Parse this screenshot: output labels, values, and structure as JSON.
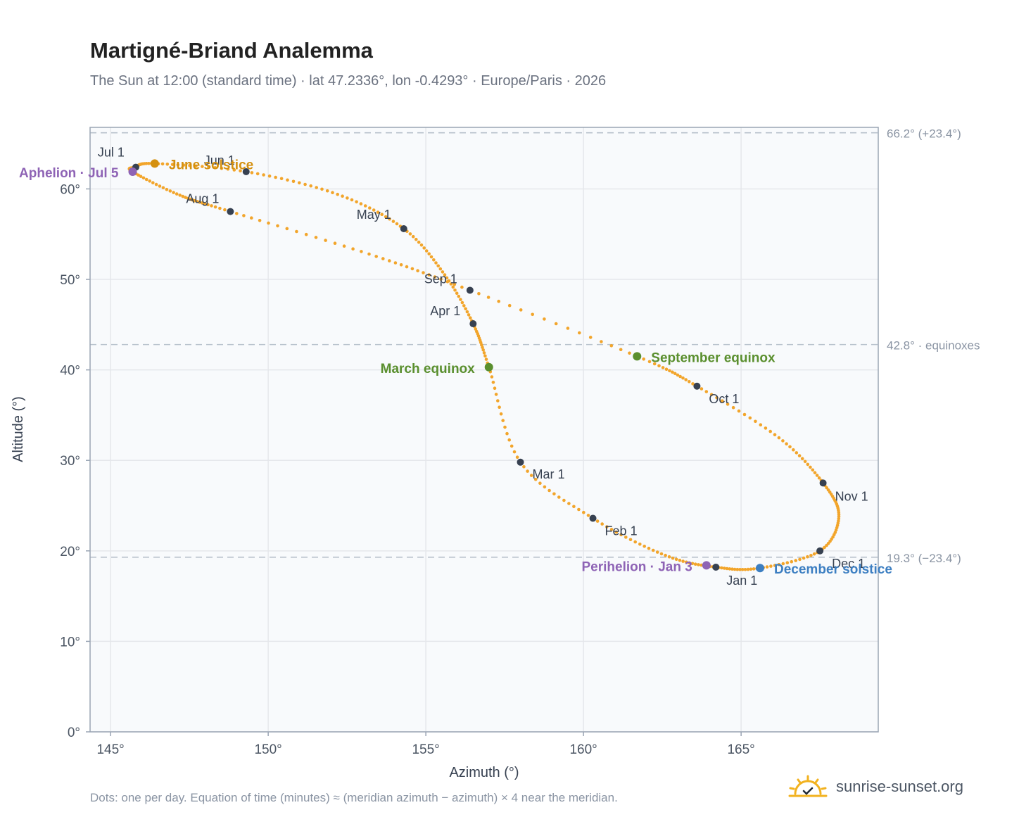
{
  "header": {
    "title": "Martigné-Briand Analemma",
    "subtitle": "The Sun at 12:00 (standard time) · lat 47.2336°, lon -0.4293° · Europe/Paris · 2026"
  },
  "footer": {
    "note": "Dots: one per day. Equation of time (minutes) ≈ (meridian azimuth − azimuth) × 4 near the meridian.",
    "brand": "sunrise-sunset.org"
  },
  "colors": {
    "curve": "#f2a52b",
    "month_marker": "#374151",
    "june_solstice": "#d4900f",
    "december_solstice": "#3d7fc2",
    "equinox": "#5a8f2e",
    "apsis": "#8e63b5",
    "plot_bg": "#f8fafc",
    "grid": "#e5e7eb",
    "reference_line": "#b8c2cc"
  },
  "chart_data": {
    "type": "scatter",
    "xlabel": "Azimuth (°)",
    "ylabel": "Altitude (°)",
    "xlim": [
      144.35,
      169.35
    ],
    "ylim": [
      0,
      66.8
    ],
    "x_ticks": [
      145,
      150,
      155,
      160,
      165
    ],
    "y_ticks": [
      0,
      10,
      20,
      30,
      40,
      50,
      60
    ],
    "x_tick_labels": [
      "145°",
      "150°",
      "155°",
      "160°",
      "165°"
    ],
    "y_tick_labels": [
      "0°",
      "10°",
      "20°",
      "30°",
      "40°",
      "50°",
      "60°"
    ],
    "grid": true,
    "reference_lines": [
      {
        "altitude": 66.2,
        "label": "66.2° (+23.4°)"
      },
      {
        "altitude": 42.8,
        "label": "42.8° · equinoxes"
      },
      {
        "altitude": 19.3,
        "label": "19.3° (−23.4°)"
      }
    ],
    "daily_path": [
      [
        164.2,
        18.2
      ],
      [
        162.6,
        19.5
      ],
      [
        160.3,
        23.6
      ],
      [
        158.0,
        29.8
      ],
      [
        157.0,
        40.3
      ],
      [
        156.5,
        45.1
      ],
      [
        155.6,
        50.5
      ],
      [
        154.3,
        55.6
      ],
      [
        152.2,
        59.4
      ],
      [
        149.3,
        61.9
      ],
      [
        146.4,
        62.8
      ],
      [
        145.8,
        62.4
      ],
      [
        145.7,
        61.9
      ],
      [
        147.2,
        59.3
      ],
      [
        148.8,
        57.5
      ],
      [
        153.2,
        52.8
      ],
      [
        156.4,
        48.8
      ],
      [
        161.7,
        41.5
      ],
      [
        163.6,
        38.2
      ],
      [
        166.2,
        32.5
      ],
      [
        167.6,
        27.5
      ],
      [
        168.1,
        23.8
      ],
      [
        167.5,
        20.0
      ],
      [
        165.6,
        18.1
      ],
      [
        164.2,
        18.2
      ]
    ],
    "months": [
      {
        "label": "Jan 1",
        "x": 164.2,
        "y": 18.2
      },
      {
        "label": "Feb 1",
        "x": 160.3,
        "y": 23.6
      },
      {
        "label": "Mar 1",
        "x": 158.0,
        "y": 29.8
      },
      {
        "label": "Apr 1",
        "x": 156.5,
        "y": 45.1
      },
      {
        "label": "May 1",
        "x": 154.3,
        "y": 55.6
      },
      {
        "label": "Jun 1",
        "x": 149.3,
        "y": 61.9
      },
      {
        "label": "Jul 1",
        "x": 145.8,
        "y": 62.4
      },
      {
        "label": "Aug 1",
        "x": 148.8,
        "y": 57.5
      },
      {
        "label": "Sep 1",
        "x": 156.4,
        "y": 48.8
      },
      {
        "label": "Oct 1",
        "x": 163.6,
        "y": 38.2
      },
      {
        "label": "Nov 1",
        "x": 167.6,
        "y": 27.5
      },
      {
        "label": "Dec 1",
        "x": 167.5,
        "y": 20.0
      }
    ],
    "events": [
      {
        "label": "June solstice",
        "x": 146.4,
        "y": 62.8,
        "color": "#d4900f"
      },
      {
        "label": "December solstice",
        "x": 165.6,
        "y": 18.1,
        "color": "#3d7fc2"
      },
      {
        "label": "March equinox",
        "x": 157.0,
        "y": 40.3,
        "color": "#5a8f2e"
      },
      {
        "label": "September equinox",
        "x": 161.7,
        "y": 41.5,
        "color": "#5a8f2e"
      },
      {
        "label": "Aphelion · Jul 5",
        "x": 145.7,
        "y": 61.9,
        "color": "#8e63b5"
      },
      {
        "label": "Perihelion · Jan 3",
        "x": 163.9,
        "y": 18.4,
        "color": "#8e63b5"
      }
    ]
  }
}
